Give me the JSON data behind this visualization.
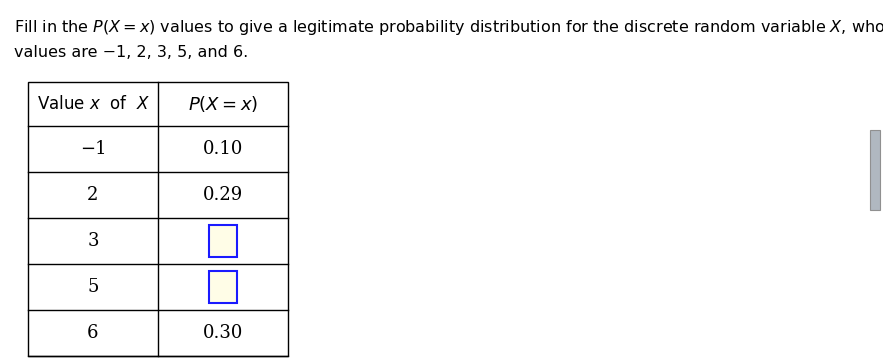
{
  "title_line1": "Fill in the $P(X{=}x)$ values to give a legitimate probability distribution for the discrete random variable $X$, whose possible",
  "title_line2": "values are −1, 2, 3, 5, and 6.",
  "col1_header": "Value $x$  of  $X$",
  "col2_header": "$P(X = x)$",
  "rows": [
    {
      "x": "−1",
      "px": "0.10",
      "is_input": false
    },
    {
      "x": "2",
      "px": "0.29",
      "is_input": false
    },
    {
      "x": "3",
      "px": "",
      "is_input": true
    },
    {
      "x": "5",
      "px": "",
      "is_input": true
    },
    {
      "x": "6",
      "px": "0.30",
      "is_input": false
    }
  ],
  "input_box_fill": "#FFFDE7",
  "input_box_edge": "#1a1aff",
  "table_edge": "#000000",
  "text_color": "#000000",
  "bg_color": "#ffffff",
  "font_size_title": 11.5,
  "font_size_header": 12,
  "font_size_cell": 13,
  "scrollbar_color": "#b0b8c0",
  "scrollbar_edge": "#909090"
}
